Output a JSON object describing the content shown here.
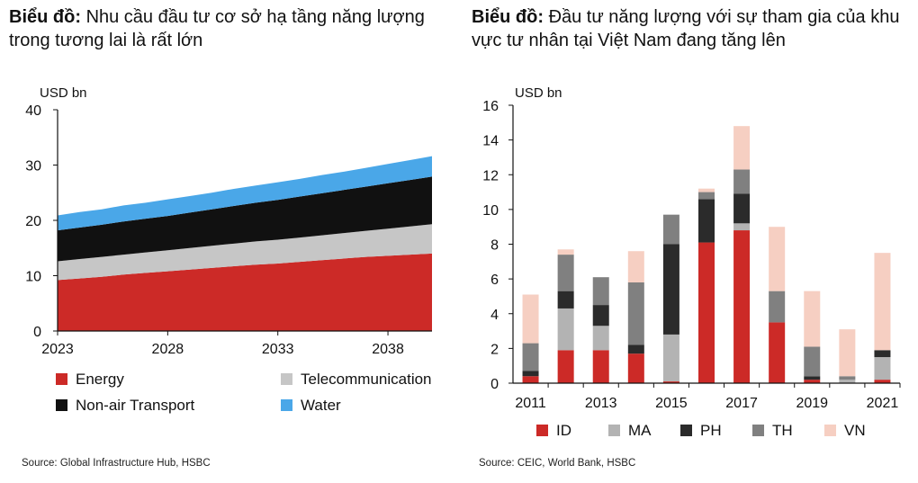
{
  "chart_data": [
    {
      "type": "area",
      "title_prefix": "Biểu đồ:",
      "title": "Nhu cầu đầu tư cơ sở hạ tầng năng lượng trong tương lai là rất lớn",
      "unit": "USD bn",
      "x": [
        2023,
        2024,
        2025,
        2026,
        2027,
        2028,
        2029,
        2030,
        2031,
        2032,
        2033,
        2034,
        2035,
        2036,
        2037,
        2038,
        2039,
        2040
      ],
      "xticks": [
        "2023",
        "2028",
        "2033",
        "2038"
      ],
      "ylim": [
        0,
        40
      ],
      "yticks": [
        "0",
        "10",
        "20",
        "30",
        "40"
      ],
      "series": [
        {
          "name": "Energy",
          "color": "#cc2a27",
          "values": [
            9.2,
            9.5,
            9.8,
            10.2,
            10.5,
            10.8,
            11.1,
            11.4,
            11.7,
            12.0,
            12.2,
            12.5,
            12.8,
            13.1,
            13.4,
            13.6,
            13.8,
            14.0
          ]
        },
        {
          "name": "Telecommunication",
          "color": "#c6c6c6",
          "values": [
            3.4,
            3.5,
            3.6,
            3.6,
            3.7,
            3.8,
            3.9,
            4.0,
            4.1,
            4.2,
            4.3,
            4.4,
            4.5,
            4.6,
            4.7,
            4.9,
            5.1,
            5.3
          ]
        },
        {
          "name": "Non-air Transport",
          "color": "#111111",
          "values": [
            5.6,
            5.7,
            5.8,
            6.0,
            6.1,
            6.2,
            6.4,
            6.6,
            6.8,
            7.0,
            7.2,
            7.4,
            7.6,
            7.8,
            8.0,
            8.2,
            8.4,
            8.6
          ]
        },
        {
          "name": "Water",
          "color": "#4aa7e8",
          "values": [
            2.7,
            2.8,
            2.8,
            2.9,
            2.9,
            3.0,
            3.0,
            3.0,
            3.1,
            3.1,
            3.2,
            3.2,
            3.3,
            3.3,
            3.4,
            3.5,
            3.6,
            3.7
          ]
        }
      ],
      "legend": "bottom",
      "source": "Source: Global Infrastructure Hub, HSBC"
    },
    {
      "type": "bar",
      "stacked": true,
      "title_prefix": "Biểu đồ:",
      "title": "Đầu tư năng lượng với sự tham gia của khu vực tư nhân tại Việt Nam đang tăng lên",
      "unit": "USD bn",
      "categories": [
        "2011",
        "2012",
        "2013",
        "2014",
        "2015",
        "2016",
        "2017",
        "2018",
        "2019",
        "2020",
        "2021"
      ],
      "xticks": [
        "2011",
        "2013",
        "2015",
        "2017",
        "2019",
        "2021"
      ],
      "ylim": [
        0,
        16
      ],
      "yticks": [
        "0",
        "2",
        "4",
        "6",
        "8",
        "10",
        "12",
        "14",
        "16"
      ],
      "series": [
        {
          "name": "ID",
          "color": "#cc2a27",
          "values": [
            0.4,
            1.9,
            1.9,
            1.7,
            0.1,
            8.1,
            8.8,
            3.5,
            0.2,
            0.0,
            0.2
          ]
        },
        {
          "name": "MA",
          "color": "#b3b3b3",
          "values": [
            0.0,
            2.4,
            1.4,
            0.0,
            2.7,
            0.0,
            0.4,
            0.0,
            0.0,
            0.2,
            1.3
          ]
        },
        {
          "name": "PH",
          "color": "#2b2b2b",
          "values": [
            0.3,
            1.0,
            1.2,
            0.5,
            5.2,
            2.5,
            1.7,
            0.0,
            0.2,
            0.0,
            0.4
          ]
        },
        {
          "name": "TH",
          "color": "#808080",
          "values": [
            1.6,
            2.1,
            1.6,
            3.6,
            1.7,
            0.4,
            1.4,
            1.8,
            1.7,
            0.2,
            0.0
          ]
        },
        {
          "name": "VN",
          "color": "#f6cfc2",
          "values": [
            2.8,
            0.3,
            0.0,
            1.8,
            0.0,
            0.2,
            2.5,
            3.7,
            3.2,
            2.7,
            5.6
          ]
        }
      ],
      "legend": "bottom",
      "source": "Source: CEIC, World Bank, HSBC"
    }
  ]
}
